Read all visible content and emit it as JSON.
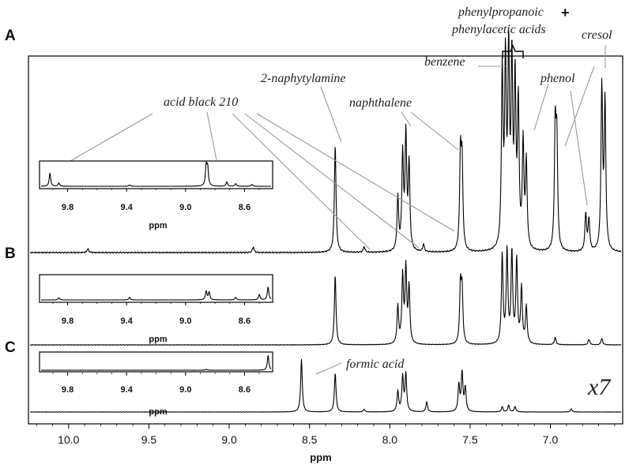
{
  "chart_data": {
    "type": "line",
    "xlabel": "ppm",
    "xlim": [
      10.25,
      6.55
    ],
    "x_reversed": true,
    "xticks": [
      "10.0",
      "9.5",
      "9.0",
      "8.5",
      "8.0",
      "7.5",
      "7.0"
    ],
    "panels": [
      "A",
      "B",
      "C"
    ],
    "annotations": [
      "acid black 210",
      "2-naphytylamine",
      "naphthalene",
      "benzene",
      "phenylpropanoic",
      "phenylacetic acids",
      "phenol",
      "cresol",
      "formic acid"
    ],
    "plus_sign": "+",
    "scale_label": "x7",
    "inset": {
      "xlabel": "ppm",
      "xticks": [
        "9.8",
        "9.4",
        "9.0",
        "8.6"
      ],
      "xlim": [
        9.98,
        8.42
      ]
    },
    "series": [
      {
        "panel": "A",
        "peaks": [
          {
            "ppm": 9.88,
            "h": 0.02
          },
          {
            "ppm": 8.85,
            "h": 0.03
          },
          {
            "ppm": 8.34,
            "h": 0.57
          },
          {
            "ppm": 8.16,
            "h": 0.03
          },
          {
            "ppm": 7.95,
            "h": 0.28
          },
          {
            "ppm": 7.92,
            "h": 0.5
          },
          {
            "ppm": 7.9,
            "h": 0.6
          },
          {
            "ppm": 7.88,
            "h": 0.45
          },
          {
            "ppm": 7.79,
            "h": 0.04
          },
          {
            "ppm": 7.56,
            "h": 0.5
          },
          {
            "ppm": 7.55,
            "h": 0.44
          },
          {
            "ppm": 7.3,
            "h": 0.92
          },
          {
            "ppm": 7.28,
            "h": 0.95
          },
          {
            "ppm": 7.26,
            "h": 1.0
          },
          {
            "ppm": 7.24,
            "h": 0.95
          },
          {
            "ppm": 7.22,
            "h": 0.85
          },
          {
            "ppm": 7.2,
            "h": 0.75
          },
          {
            "ppm": 7.17,
            "h": 0.55
          },
          {
            "ppm": 7.15,
            "h": 0.45
          },
          {
            "ppm": 6.97,
            "h": 0.63
          },
          {
            "ppm": 6.96,
            "h": 0.55
          },
          {
            "ppm": 6.78,
            "h": 0.2
          },
          {
            "ppm": 6.76,
            "h": 0.17
          },
          {
            "ppm": 6.68,
            "h": 0.86
          },
          {
            "ppm": 6.66,
            "h": 0.78
          }
        ]
      },
      {
        "panel": "B",
        "peaks": [
          {
            "ppm": 8.34,
            "h": 0.75
          },
          {
            "ppm": 7.95,
            "h": 0.4
          },
          {
            "ppm": 7.92,
            "h": 0.72
          },
          {
            "ppm": 7.9,
            "h": 0.8
          },
          {
            "ppm": 7.88,
            "h": 0.6
          },
          {
            "ppm": 7.56,
            "h": 0.62
          },
          {
            "ppm": 7.55,
            "h": 0.55
          },
          {
            "ppm": 7.3,
            "h": 0.95
          },
          {
            "ppm": 7.27,
            "h": 1.0
          },
          {
            "ppm": 7.24,
            "h": 0.98
          },
          {
            "ppm": 7.21,
            "h": 0.9
          },
          {
            "ppm": 7.18,
            "h": 0.6
          },
          {
            "ppm": 7.15,
            "h": 0.4
          },
          {
            "ppm": 6.97,
            "h": 0.08
          },
          {
            "ppm": 6.76,
            "h": 0.06
          },
          {
            "ppm": 6.68,
            "h": 0.07
          }
        ]
      },
      {
        "panel": "C",
        "peaks": [
          {
            "ppm": 8.55,
            "h": 0.78
          },
          {
            "ppm": 8.34,
            "h": 0.58
          },
          {
            "ppm": 8.16,
            "h": 0.04
          },
          {
            "ppm": 7.95,
            "h": 0.3
          },
          {
            "ppm": 7.92,
            "h": 0.52
          },
          {
            "ppm": 7.9,
            "h": 0.56
          },
          {
            "ppm": 7.77,
            "h": 0.15
          },
          {
            "ppm": 7.57,
            "h": 0.4
          },
          {
            "ppm": 7.55,
            "h": 0.58
          },
          {
            "ppm": 7.53,
            "h": 0.35
          },
          {
            "ppm": 7.3,
            "h": 0.08
          },
          {
            "ppm": 7.26,
            "h": 0.1
          },
          {
            "ppm": 7.22,
            "h": 0.08
          },
          {
            "ppm": 6.87,
            "h": 0.05
          }
        ]
      }
    ]
  }
}
